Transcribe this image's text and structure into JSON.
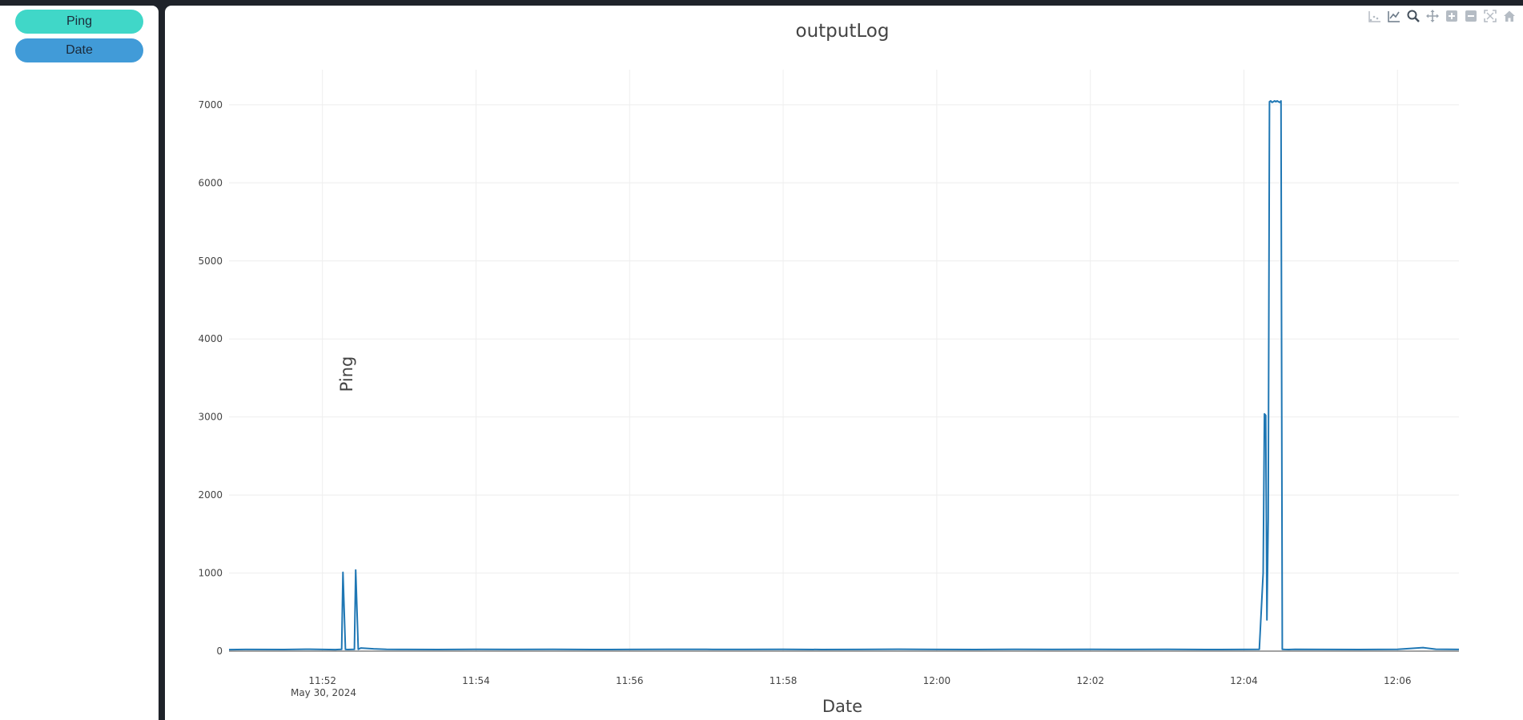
{
  "sidebar": {
    "buttons": [
      {
        "label": "Ping",
        "color": "#40d7c8"
      },
      {
        "label": "Date",
        "color": "#419bd8"
      }
    ]
  },
  "modebar": {
    "icons": [
      "download-plot-icon",
      "autoscale-line-icon",
      "zoom-icon",
      "pan-icon",
      "zoom-in-icon",
      "zoom-out-icon",
      "autoscale-icon",
      "reset-axes-icon"
    ]
  },
  "chart_data": {
    "type": "line",
    "title": "outputLog",
    "xlabel": "Date",
    "ylabel": "Ping",
    "xlim": [
      "2024-05-30 11:50:47",
      "2024-05-30 12:06:48"
    ],
    "ylim": [
      0,
      7450
    ],
    "x_ticks": [
      "11:52",
      "11:54",
      "11:56",
      "11:58",
      "12:00",
      "12:02",
      "12:04",
      "12:06"
    ],
    "x_tick_date": "May 30, 2024",
    "y_ticks": [
      "0",
      "1000",
      "2000",
      "3000",
      "4000",
      "5000",
      "6000",
      "7000"
    ],
    "grid": true,
    "series": [
      {
        "color": "#1f77b4",
        "x": [
          "11:50:47",
          "11:51:00",
          "11:51:30",
          "11:51:50",
          "11:52:10",
          "11:52:15",
          "11:52:16",
          "11:52:18",
          "11:52:20",
          "11:52:25",
          "11:52:26",
          "11:52:28",
          "11:52:30",
          "11:52:40",
          "11:52:50",
          "11:53:00",
          "11:53:30",
          "11:54:00",
          "11:54:30",
          "11:55:00",
          "11:55:30",
          "11:56:00",
          "11:56:30",
          "11:57:00",
          "11:57:30",
          "11:58:00",
          "11:58:30",
          "11:59:00",
          "11:59:30",
          "12:00:00",
          "12:00:30",
          "12:01:00",
          "12:01:30",
          "12:02:00",
          "12:02:30",
          "12:03:00",
          "12:03:30",
          "12:04:00",
          "12:04:12",
          "12:04:15",
          "12:04:16",
          "12:04:17",
          "12:04:18",
          "12:04:19",
          "12:04:20",
          "12:04:21",
          "12:04:22",
          "12:04:23",
          "12:04:24",
          "12:04:25",
          "12:04:26",
          "12:04:27",
          "12:04:28",
          "12:04:29",
          "12:04:30",
          "12:04:32",
          "12:04:35",
          "12:04:40",
          "12:05:00",
          "12:05:30",
          "12:06:00",
          "12:06:20",
          "12:06:30",
          "12:06:48"
        ],
        "y": [
          20,
          22,
          21,
          25,
          20,
          24,
          1010,
          22,
          21,
          23,
          1040,
          24,
          40,
          30,
          24,
          22,
          21,
          24,
          22,
          23,
          21,
          22,
          24,
          23,
          22,
          24,
          21,
          22,
          25,
          22,
          21,
          23,
          22,
          24,
          22,
          23,
          21,
          22,
          24,
          1000,
          3040,
          3020,
          400,
          1700,
          7040,
          7050,
          7030,
          7040,
          7050,
          7040,
          7050,
          7040,
          7030,
          7050,
          24,
          22,
          21,
          23,
          22,
          21,
          23,
          45,
          25,
          22
        ]
      }
    ]
  }
}
